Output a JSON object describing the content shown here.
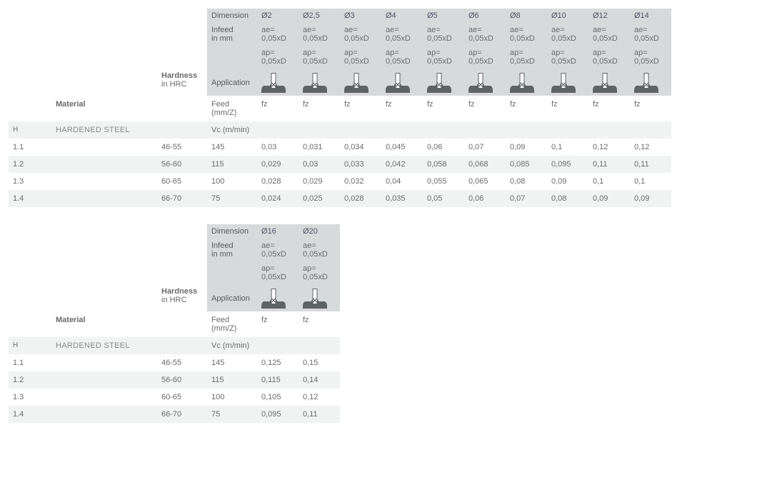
{
  "labels": {
    "dimension": "Dimension",
    "infeed": "Infeed",
    "infeed_sub": "in mm",
    "application": "Application",
    "material": "Material",
    "hardness": "Hardness",
    "hardness_sub": "in HRC",
    "feed": "Feed (mm/Z)",
    "fz": "fz",
    "vc": "Vc (m/min)",
    "ae_line": "ae=",
    "ae_val": "0,05xD",
    "ap_line": "ap=",
    "ap_val": "0,05xD"
  },
  "section": {
    "code": "H",
    "name": "HARDENED STEEL"
  },
  "table1": {
    "diameters": [
      "Ø2",
      "Ø2,5",
      "Ø3",
      "Ø4",
      "Ø5",
      "Ø6",
      "Ø8",
      "Ø10",
      "Ø12",
      "Ø14"
    ],
    "rows": [
      {
        "code": "1.1",
        "hardness": "46-55",
        "vc": "145",
        "vals": [
          "0,03",
          "0,031",
          "0,034",
          "0,045",
          "0,06",
          "0,07",
          "0,09",
          "0,1",
          "0,12",
          "0,12"
        ]
      },
      {
        "code": "1.2",
        "hardness": "56-60",
        "vc": "115",
        "vals": [
          "0,029",
          "0,03",
          "0,033",
          "0,042",
          "0,058",
          "0,068",
          "0,085",
          "0,095",
          "0,11",
          "0,11"
        ]
      },
      {
        "code": "1.3",
        "hardness": "60-65",
        "vc": "100",
        "vals": [
          "0,028",
          "0,029",
          "0,032",
          "0,04",
          "0,055",
          "0,065",
          "0,08",
          "0,09",
          "0,1",
          "0,1"
        ]
      },
      {
        "code": "1.4",
        "hardness": "66-70",
        "vc": "75",
        "vals": [
          "0,024",
          "0,025",
          "0,028",
          "0,035",
          "0,05",
          "0,06",
          "0,07",
          "0,08",
          "0,09",
          "0,09"
        ]
      }
    ]
  },
  "table2": {
    "diameters": [
      "Ø16",
      "Ø20"
    ],
    "rows": [
      {
        "code": "1.1",
        "hardness": "46-55",
        "vc": "145",
        "vals": [
          "0,125",
          "0,15"
        ]
      },
      {
        "code": "1.2",
        "hardness": "56-60",
        "vc": "115",
        "vals": [
          "0,115",
          "0,14"
        ]
      },
      {
        "code": "1.3",
        "hardness": "60-65",
        "vc": "100",
        "vals": [
          "0,105",
          "0,12"
        ]
      },
      {
        "code": "1.4",
        "hardness": "66-70",
        "vc": "75",
        "vals": [
          "0,095",
          "0,11"
        ]
      }
    ]
  },
  "style": {
    "header_bg": "#d7dadb",
    "alt_row_bg": "#f1f2f2",
    "text_color": "#6b6b6b",
    "icon_color": "#5e6366"
  }
}
